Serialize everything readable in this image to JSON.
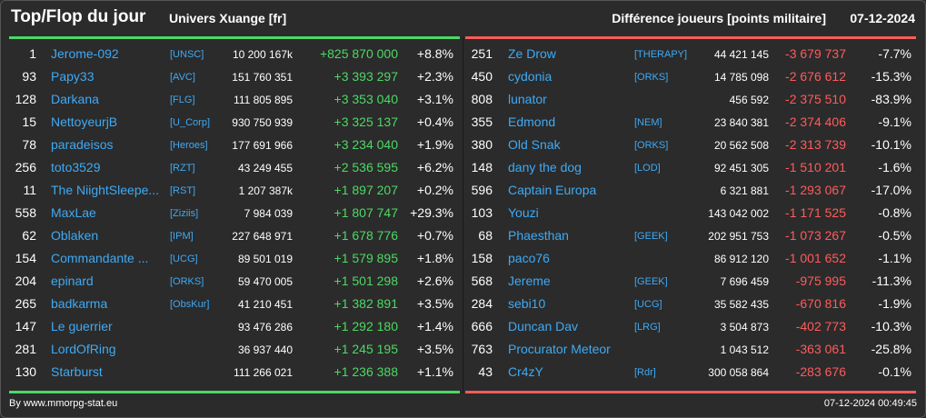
{
  "header": {
    "title": "Top/Flop du jour",
    "subtitle": "Univers Xuange [fr]",
    "metric": "Différence joueurs [points militaire]",
    "date": "07-12-2024"
  },
  "colors": {
    "positive": "#4cd964",
    "negative": "#ff5b5b",
    "link": "#3eaaf5"
  },
  "top": [
    {
      "rank": "1",
      "name": "Jerome-092",
      "tag": "[UNSC]",
      "points": "10 200 167k",
      "diff": "+825 870 000",
      "pct": "+8.8%"
    },
    {
      "rank": "93",
      "name": "Papy33",
      "tag": "[AVC]",
      "points": "151 760 351",
      "diff": "+3 393 297",
      "pct": "+2.3%"
    },
    {
      "rank": "128",
      "name": "Darkana",
      "tag": "[FLG]",
      "points": "111 805 895",
      "diff": "+3 353 040",
      "pct": "+3.1%"
    },
    {
      "rank": "15",
      "name": "NettoyeurjB",
      "tag": "[U_Corp]",
      "points": "930 750 939",
      "diff": "+3 325 137",
      "pct": "+0.4%"
    },
    {
      "rank": "78",
      "name": "paradeisos",
      "tag": "[Heroes]",
      "points": "177 691 966",
      "diff": "+3 234 040",
      "pct": "+1.9%"
    },
    {
      "rank": "256",
      "name": "toto3529",
      "tag": "[RZT]",
      "points": "43 249 455",
      "diff": "+2 536 595",
      "pct": "+6.2%"
    },
    {
      "rank": "11",
      "name": "The NiightSleepe...",
      "tag": "[RST]",
      "points": "1 207 387k",
      "diff": "+1 897 207",
      "pct": "+0.2%"
    },
    {
      "rank": "558",
      "name": "MaxLae",
      "tag": "[Ziziis]",
      "points": "7 984 039",
      "diff": "+1 807 747",
      "pct": "+29.3%"
    },
    {
      "rank": "62",
      "name": "Oblaken",
      "tag": "[IPM]",
      "points": "227 648 971",
      "diff": "+1 678 776",
      "pct": "+0.7%"
    },
    {
      "rank": "154",
      "name": "Commandante ...",
      "tag": "[UCG]",
      "points": "89 501 019",
      "diff": "+1 579 895",
      "pct": "+1.8%"
    },
    {
      "rank": "204",
      "name": "epinard",
      "tag": "[ORKS]",
      "points": "59 470 005",
      "diff": "+1 501 298",
      "pct": "+2.6%"
    },
    {
      "rank": "265",
      "name": "badkarma",
      "tag": "[ObsKur]",
      "points": "41 210 451",
      "diff": "+1 382 891",
      "pct": "+3.5%"
    },
    {
      "rank": "147",
      "name": "Le guerrier",
      "tag": "",
      "points": "93 476 286",
      "diff": "+1 292 180",
      "pct": "+1.4%"
    },
    {
      "rank": "281",
      "name": "LordOfRing",
      "tag": "",
      "points": "36 937 440",
      "diff": "+1 245 195",
      "pct": "+3.5%"
    },
    {
      "rank": "130",
      "name": "Starburst",
      "tag": "",
      "points": "111 266 021",
      "diff": "+1 236 388",
      "pct": "+1.1%"
    }
  ],
  "flop": [
    {
      "rank": "251",
      "name": "Ze Drow",
      "tag": "[THERAPY]",
      "points": "44 421 145",
      "diff": "-3 679 737",
      "pct": "-7.7%"
    },
    {
      "rank": "450",
      "name": "cydonia",
      "tag": "[ORKS]",
      "points": "14 785 098",
      "diff": "-2 676 612",
      "pct": "-15.3%"
    },
    {
      "rank": "808",
      "name": "lunator",
      "tag": "",
      "points": "456 592",
      "diff": "-2 375 510",
      "pct": "-83.9%"
    },
    {
      "rank": "355",
      "name": "Edmond",
      "tag": "[NEM]",
      "points": "23 840 381",
      "diff": "-2 374 406",
      "pct": "-9.1%"
    },
    {
      "rank": "380",
      "name": "Old Snak",
      "tag": "[ORKS]",
      "points": "20 562 508",
      "diff": "-2 313 739",
      "pct": "-10.1%"
    },
    {
      "rank": "148",
      "name": "dany the dog",
      "tag": "[LOD]",
      "points": "92 451 305",
      "diff": "-1 510 201",
      "pct": "-1.6%"
    },
    {
      "rank": "596",
      "name": "Captain Europa",
      "tag": "",
      "points": "6 321 881",
      "diff": "-1 293 067",
      "pct": "-17.0%"
    },
    {
      "rank": "103",
      "name": "Youzi",
      "tag": "",
      "points": "143 042 002",
      "diff": "-1 171 525",
      "pct": "-0.8%"
    },
    {
      "rank": "68",
      "name": "Phaesthan",
      "tag": "[GEEK]",
      "points": "202 951 753",
      "diff": "-1 073 267",
      "pct": "-0.5%"
    },
    {
      "rank": "158",
      "name": "paco76",
      "tag": "",
      "points": "86 912 120",
      "diff": "-1 001 652",
      "pct": "-1.1%"
    },
    {
      "rank": "568",
      "name": "Jereme",
      "tag": "[GEEK]",
      "points": "7 696 459",
      "diff": "-975 995",
      "pct": "-11.3%"
    },
    {
      "rank": "284",
      "name": "sebi10",
      "tag": "[UCG]",
      "points": "35 582 435",
      "diff": "-670 816",
      "pct": "-1.9%"
    },
    {
      "rank": "666",
      "name": "Duncan Dav",
      "tag": "[LRG]",
      "points": "3 504 873",
      "diff": "-402 773",
      "pct": "-10.3%"
    },
    {
      "rank": "763",
      "name": "Procurator Meteor",
      "tag": "",
      "points": "1 043 512",
      "diff": "-363 061",
      "pct": "-25.8%"
    },
    {
      "rank": "43",
      "name": "Cr4zY",
      "tag": "[Rdr]",
      "points": "300 058 864",
      "diff": "-283 676",
      "pct": "-0.1%"
    }
  ],
  "footer": {
    "source": "By www.mmorpg-stat.eu",
    "timestamp": "07-12-2024 00:49:45"
  }
}
